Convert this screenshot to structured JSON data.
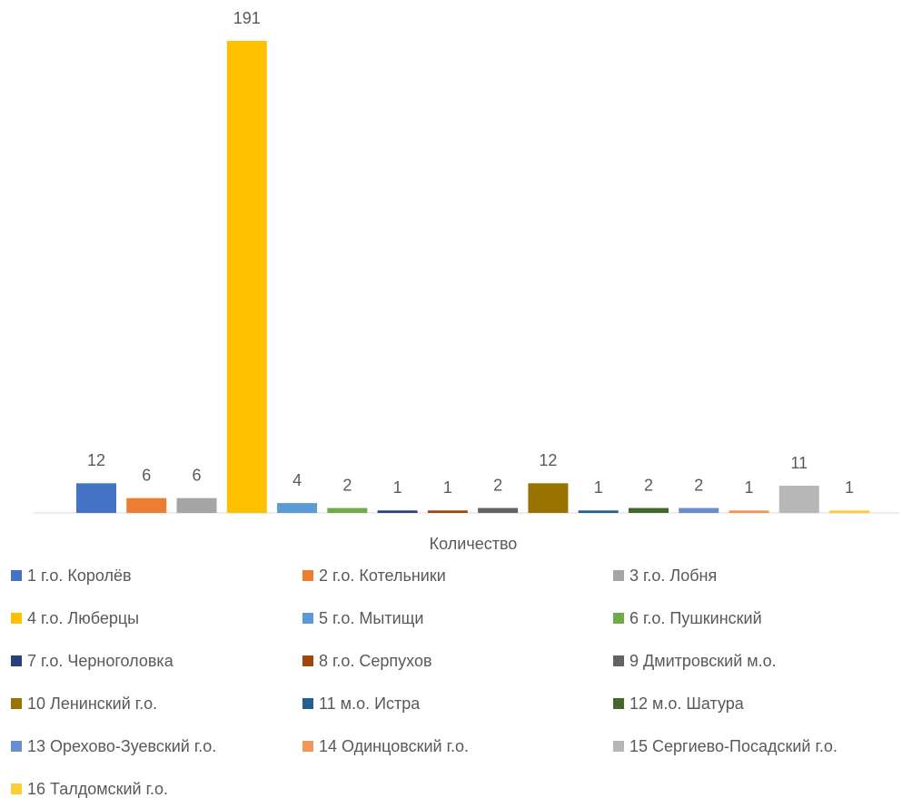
{
  "chart_data": {
    "type": "bar",
    "categories": [
      "Количество"
    ],
    "series": [
      {
        "name": "1 г.о. Королёв",
        "color": "#4472c4",
        "values": [
          12
        ]
      },
      {
        "name": "2 г.о. Котельники",
        "color": "#ed7d31",
        "values": [
          6
        ]
      },
      {
        "name": "3 г.о. Лобня",
        "color": "#a5a5a5",
        "values": [
          6
        ]
      },
      {
        "name": "4 г.о. Люберцы",
        "color": "#ffc000",
        "values": [
          191
        ]
      },
      {
        "name": "5 г.о. Мытищи",
        "color": "#5b9bd5",
        "values": [
          4
        ]
      },
      {
        "name": "6 г.о. Пушкинский",
        "color": "#70ad47",
        "values": [
          2
        ]
      },
      {
        "name": "7 г.о. Черноголовка",
        "color": "#264478",
        "values": [
          1
        ]
      },
      {
        "name": "8 г.о. Серпухов",
        "color": "#9e480e",
        "values": [
          1
        ]
      },
      {
        "name": "9 Дмитровский м.о.",
        "color": "#636363",
        "values": [
          2
        ]
      },
      {
        "name": "10 Ленинский г.о.",
        "color": "#997300",
        "values": [
          12
        ]
      },
      {
        "name": "11 м.о. Истра",
        "color": "#255e91",
        "values": [
          1
        ]
      },
      {
        "name": "12 м.о. Шатура",
        "color": "#43682b",
        "values": [
          2
        ]
      },
      {
        "name": "13 Орехово-Зуевский г.о.",
        "color": "#698ed0",
        "values": [
          2
        ]
      },
      {
        "name": "14 Одинцовский г.о.",
        "color": "#f1975a",
        "values": [
          1
        ]
      },
      {
        "name": "15 Сергиево-Посадский г.о.",
        "color": "#b7b7b7",
        "values": [
          11
        ]
      },
      {
        "name": "16 Талдомский г.о.",
        "color": "#ffcd33",
        "values": [
          1
        ]
      }
    ],
    "legend": "bottom"
  }
}
